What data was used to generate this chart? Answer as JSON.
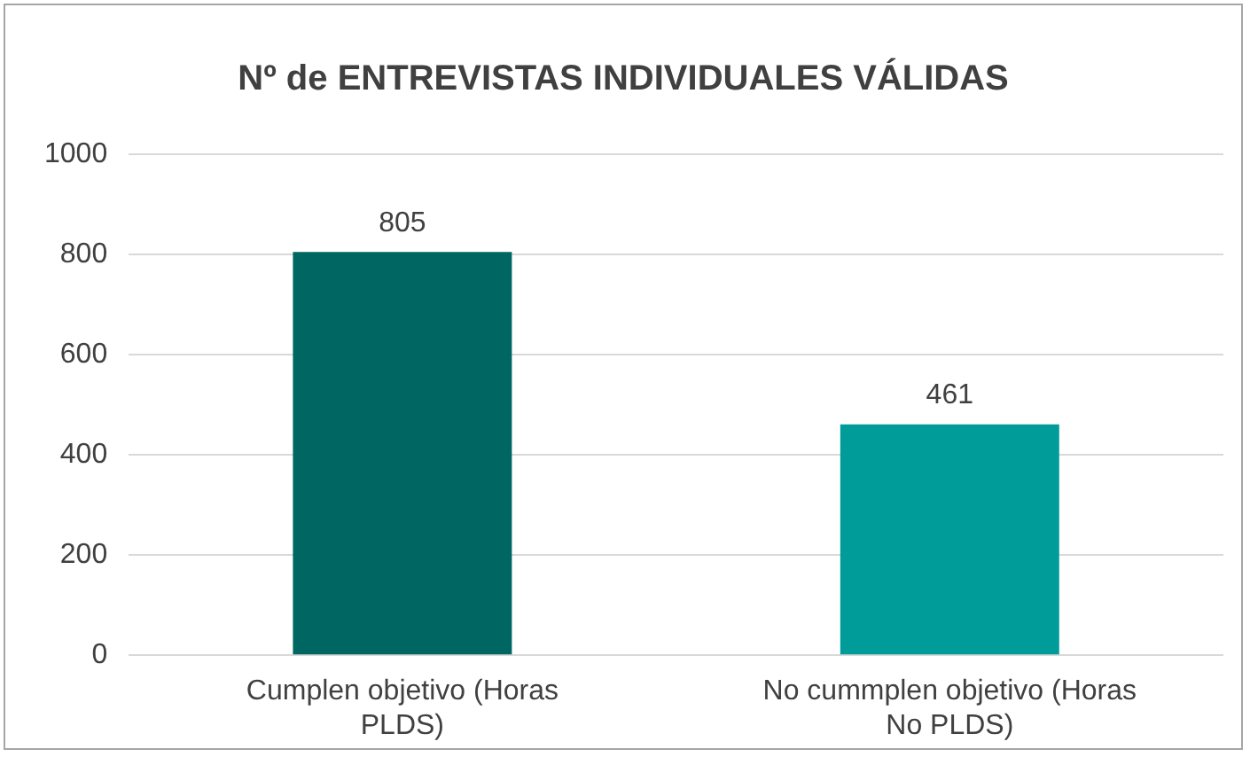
{
  "chart_data": {
    "type": "bar",
    "title": "Nº de ENTREVISTAS INDIVIDUALES VÁLIDAS",
    "categories": [
      "Cumplen objetivo (Horas PLDS)",
      "No cummplen objetivo (Horas No PLDS)"
    ],
    "values": [
      805,
      461
    ],
    "colors": [
      "#006662",
      "#009c9a"
    ],
    "ylim": [
      0,
      1000
    ],
    "yticks": [
      0,
      200,
      400,
      600,
      800,
      1000
    ],
    "grid": "y",
    "data_labels": true,
    "legend": false
  }
}
